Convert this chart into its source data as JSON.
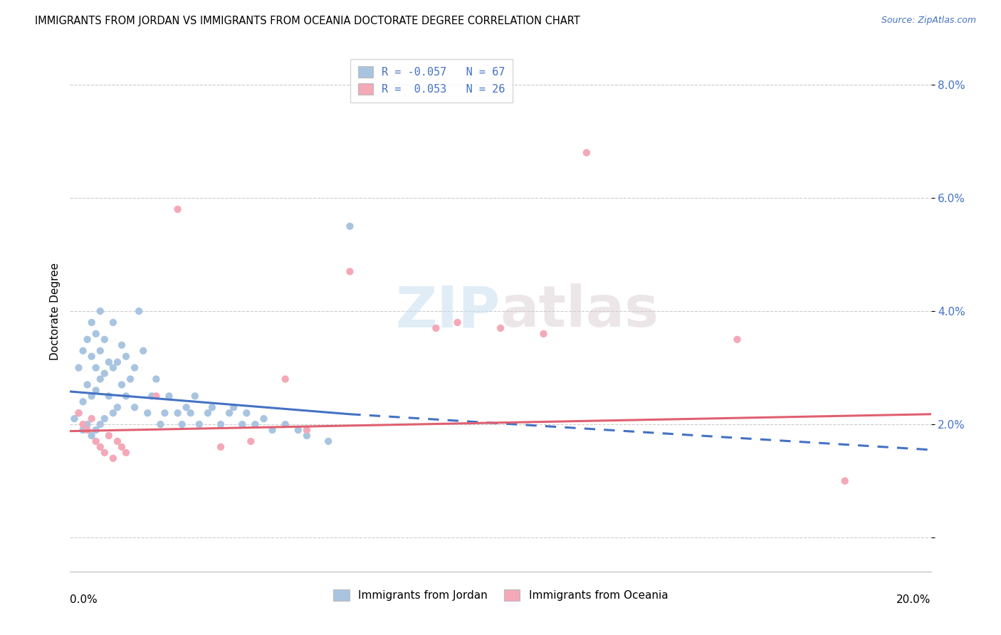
{
  "title": "IMMIGRANTS FROM JORDAN VS IMMIGRANTS FROM OCEANIA DOCTORATE DEGREE CORRELATION CHART",
  "source": "Source: ZipAtlas.com",
  "ylabel": "Doctorate Degree",
  "y_ticks": [
    0.0,
    0.02,
    0.04,
    0.06,
    0.08
  ],
  "y_tick_labels": [
    "",
    "2.0%",
    "4.0%",
    "6.0%",
    "8.0%"
  ],
  "x_min": 0.0,
  "x_max": 0.2,
  "y_min": -0.006,
  "y_max": 0.086,
  "jordan_color": "#a8c4e0",
  "oceania_color": "#f4a8b8",
  "trend_jordan_color": "#4472c4",
  "trend_oceania_color": "#e06070",
  "jordan_x": [
    0.001,
    0.002,
    0.002,
    0.003,
    0.003,
    0.003,
    0.004,
    0.004,
    0.004,
    0.005,
    0.005,
    0.005,
    0.005,
    0.006,
    0.006,
    0.006,
    0.006,
    0.007,
    0.007,
    0.007,
    0.007,
    0.008,
    0.008,
    0.008,
    0.009,
    0.009,
    0.01,
    0.01,
    0.01,
    0.011,
    0.011,
    0.012,
    0.012,
    0.013,
    0.013,
    0.014,
    0.015,
    0.015,
    0.016,
    0.017,
    0.018,
    0.019,
    0.02,
    0.021,
    0.022,
    0.023,
    0.025,
    0.026,
    0.027,
    0.028,
    0.029,
    0.03,
    0.032,
    0.033,
    0.035,
    0.037,
    0.038,
    0.04,
    0.041,
    0.043,
    0.045,
    0.047,
    0.05,
    0.053,
    0.055,
    0.06,
    0.065
  ],
  "jordan_y": [
    0.021,
    0.022,
    0.03,
    0.019,
    0.024,
    0.033,
    0.02,
    0.027,
    0.035,
    0.018,
    0.025,
    0.032,
    0.038,
    0.019,
    0.026,
    0.03,
    0.036,
    0.02,
    0.028,
    0.033,
    0.04,
    0.021,
    0.029,
    0.035,
    0.025,
    0.031,
    0.022,
    0.03,
    0.038,
    0.023,
    0.031,
    0.027,
    0.034,
    0.025,
    0.032,
    0.028,
    0.023,
    0.03,
    0.04,
    0.033,
    0.022,
    0.025,
    0.028,
    0.02,
    0.022,
    0.025,
    0.022,
    0.02,
    0.023,
    0.022,
    0.025,
    0.02,
    0.022,
    0.023,
    0.02,
    0.022,
    0.023,
    0.02,
    0.022,
    0.02,
    0.021,
    0.019,
    0.02,
    0.019,
    0.018,
    0.017,
    0.055
  ],
  "oceania_x": [
    0.002,
    0.003,
    0.004,
    0.005,
    0.006,
    0.007,
    0.008,
    0.009,
    0.01,
    0.011,
    0.012,
    0.013,
    0.02,
    0.025,
    0.035,
    0.042,
    0.05,
    0.055,
    0.065,
    0.085,
    0.09,
    0.1,
    0.11,
    0.12,
    0.155,
    0.18
  ],
  "oceania_y": [
    0.022,
    0.02,
    0.019,
    0.021,
    0.017,
    0.016,
    0.015,
    0.018,
    0.014,
    0.017,
    0.016,
    0.015,
    0.025,
    0.058,
    0.016,
    0.017,
    0.028,
    0.019,
    0.047,
    0.037,
    0.038,
    0.037,
    0.036,
    0.068,
    0.035,
    0.01
  ],
  "trend_jordan_x0": 0.0,
  "trend_jordan_x_solid_end": 0.065,
  "trend_jordan_x1": 0.2,
  "trend_jordan_y0": 0.0258,
  "trend_jordan_y_solid_end": 0.0218,
  "trend_jordan_y1": 0.0155,
  "trend_oceania_x0": 0.0,
  "trend_oceania_x1": 0.2,
  "trend_oceania_y0": 0.0188,
  "trend_oceania_y1": 0.0218
}
